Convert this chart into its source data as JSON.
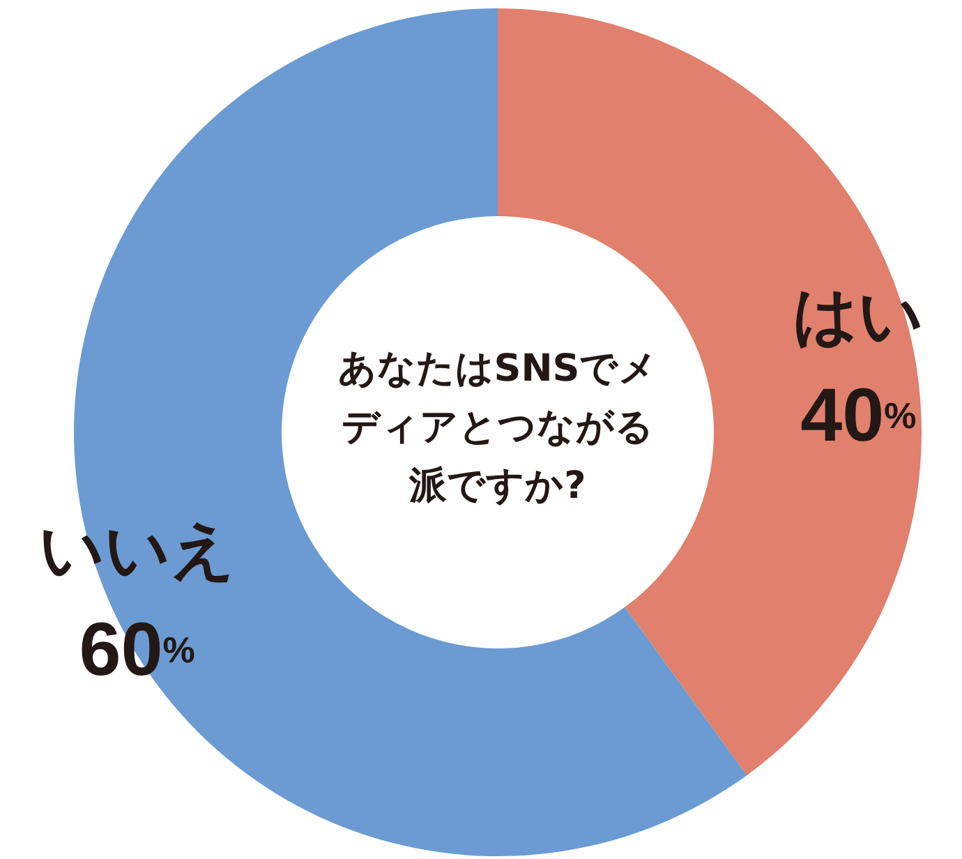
{
  "chart_data": {
    "type": "donut",
    "title": "あなたはSNSでメディアとつながる派ですか?",
    "categories": [
      "はい",
      "いいえ"
    ],
    "values": [
      40,
      60
    ],
    "colors": [
      "#e0806d",
      "#6b9bd2"
    ],
    "data_labels": true,
    "value_labels": [
      "40%",
      "60%"
    ]
  }
}
